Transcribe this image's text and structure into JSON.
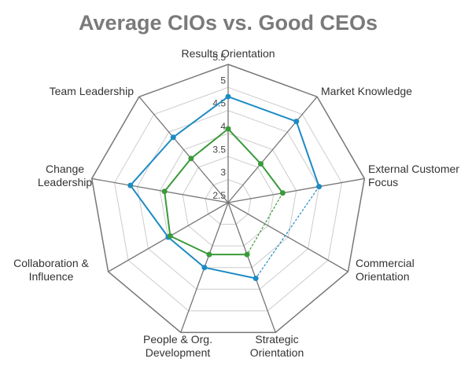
{
  "chart_data": {
    "type": "radar",
    "title": "Average CIOs vs. Good CEOs",
    "categories": [
      "Results Orientation",
      "Market Knowledge",
      "External Customer Focus",
      "Commercial Orientation",
      "Strategic Orientation",
      "People & Org. Development",
      "Collaboration & Influence",
      "Change Leadership",
      "Team Leadership"
    ],
    "series": [
      {
        "color": "#1e8bc3",
        "values": [
          4.8,
          4.8,
          4.5,
          null,
          4.25,
          4.0,
          4.0,
          4.65,
          4.35
        ]
      },
      {
        "color": "#3a9a3a",
        "values": [
          4.1,
          3.6,
          3.7,
          null,
          3.7,
          3.7,
          3.95,
          3.9,
          3.75
        ]
      }
    ],
    "rlim": [
      2.5,
      5.5
    ],
    "rticks": [
      2.5,
      3,
      3.5,
      4,
      4.5,
      5,
      5.5
    ],
    "grid": true
  }
}
